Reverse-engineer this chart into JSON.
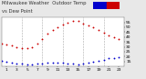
{
  "background_color": "#e8e8e8",
  "plot_bg_color": "#ffffff",
  "grid_color": "#aaaaaa",
  "temp_color": "#cc0000",
  "dew_color": "#0000cc",
  "legend_temp_color": "#cc0000",
  "legend_dew_color": "#0000cc",
  "title_text1": "Milwaukee Weather  Outdoor Temp",
  "title_text2": "vs Dew Point",
  "xlim": [
    0,
    24
  ],
  "ylim": [
    10,
    60
  ],
  "ytick_vals": [
    15,
    20,
    25,
    30,
    35,
    40,
    45,
    50,
    55
  ],
  "ytick_labels": [
    "15",
    "20",
    "25",
    "30",
    "35",
    "40",
    "45",
    "50",
    "55"
  ],
  "xtick_vals": [
    1,
    3,
    5,
    7,
    9,
    11,
    13,
    15,
    17,
    19,
    21,
    23
  ],
  "xtick_labels": [
    "1",
    "3",
    "5",
    "7",
    "9",
    "11",
    "13",
    "15",
    "17",
    "19",
    "21",
    "23"
  ],
  "vgrid_positions": [
    4,
    8,
    12,
    16,
    20
  ],
  "temp_x": [
    0,
    1,
    2,
    3,
    4,
    5,
    6,
    7,
    8,
    9,
    10,
    11,
    12,
    13,
    14,
    15,
    16,
    17,
    18,
    19,
    20,
    21,
    22,
    23
  ],
  "temp_y": [
    33,
    32,
    31,
    30,
    29,
    29,
    30,
    33,
    38,
    43,
    47,
    50,
    53,
    55,
    56,
    56,
    54,
    52,
    50,
    47,
    44,
    42,
    40,
    38
  ],
  "dew_x": [
    0,
    1,
    2,
    3,
    4,
    5,
    6,
    7,
    8,
    9,
    10,
    11,
    12,
    13,
    14,
    15,
    16,
    17,
    18,
    19,
    20,
    21,
    22,
    23
  ],
  "dew_y": [
    16,
    15,
    14,
    13,
    13,
    12,
    12,
    13,
    13,
    14,
    14,
    14,
    14,
    13,
    13,
    12,
    13,
    14,
    15,
    16,
    17,
    18,
    18,
    19
  ],
  "title_fontsize": 3.8,
  "tick_fontsize": 3.2,
  "marker_size": 1.8
}
